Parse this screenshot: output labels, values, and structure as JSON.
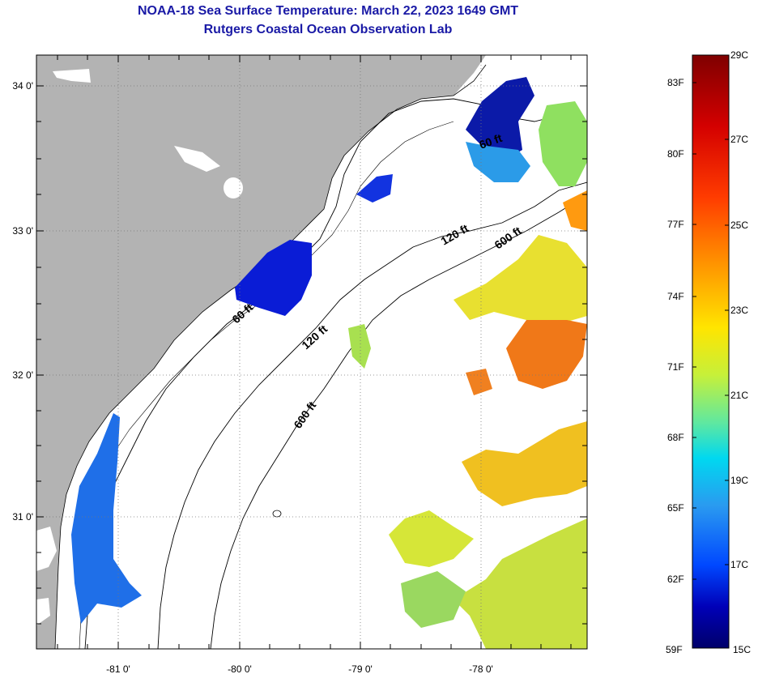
{
  "header": {
    "title": "NOAA-18 Sea Surface Temperature:  March 22, 2023 1649 GMT",
    "subtitle": "Rutgers Coastal Ocean Observation Lab"
  },
  "axes": {
    "longitude_labels": [
      "-81 0'",
      "-80 0'",
      "-79 0'",
      "-78 0'"
    ],
    "latitude_labels": [
      "34 0'",
      "33 0'",
      "32 0'",
      "31 0'"
    ]
  },
  "isobaths": {
    "labels": [
      "60 ft",
      "120 ft",
      "600 ft",
      "120 ft",
      "600 ft",
      "60 ft"
    ]
  },
  "colorbar": {
    "fahrenheit_labels": [
      "83F",
      "80F",
      "77F",
      "74F",
      "71F",
      "68F",
      "65F",
      "62F",
      "59F"
    ],
    "celsius_labels": [
      "29C",
      "27C",
      "25C",
      "23C",
      "21C",
      "19C",
      "17C",
      "15C"
    ],
    "stops": [
      "#7f0000",
      "#d40000",
      "#ff3c00",
      "#ff9a00",
      "#ffe500",
      "#c6f03a",
      "#5fe8a0",
      "#00d8f0",
      "#2a9af0",
      "#0048ff",
      "#0000b8",
      "#00006a"
    ]
  },
  "colors": {
    "land": "#b3b3b3",
    "ocean": "#ffffff",
    "title": "#1a1aa6"
  }
}
